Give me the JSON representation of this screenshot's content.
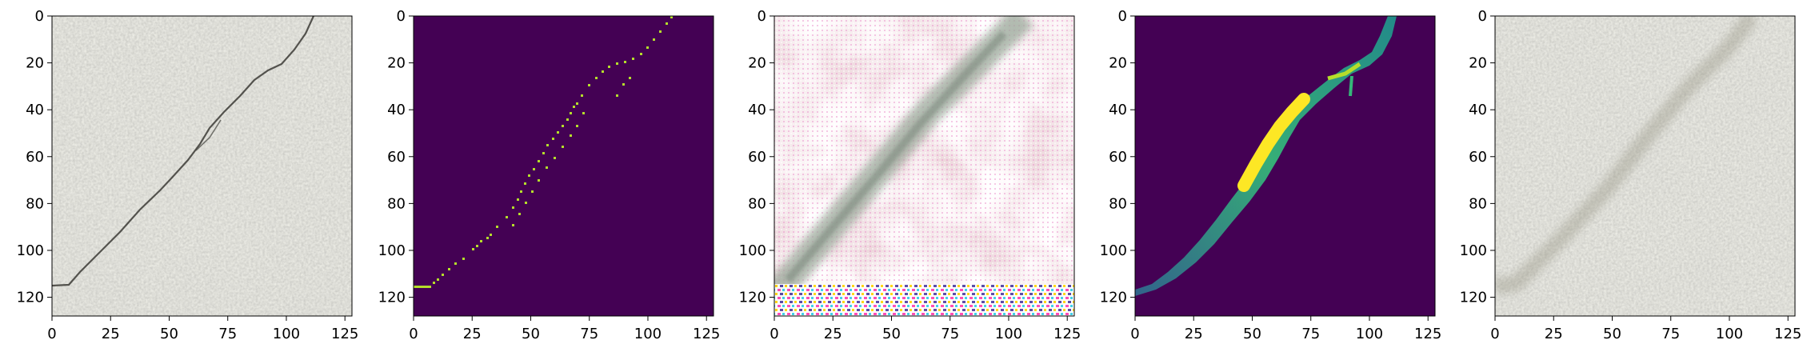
{
  "figure": {
    "panel_count": 5,
    "axes": {
      "x_ticks": [
        "0",
        "25",
        "50",
        "75",
        "100",
        "125"
      ],
      "y_ticks": [
        "0",
        "20",
        "40",
        "60",
        "80",
        "100",
        "120"
      ],
      "x_range": [
        0,
        128
      ],
      "y_range": [
        128,
        0
      ]
    },
    "panels": [
      {
        "id": "panel-1",
        "content": "stone-texture-with-crack-photo"
      },
      {
        "id": "panel-2",
        "content": "binary-crack-mask-viridis"
      },
      {
        "id": "panel-3",
        "content": "generated-texture-pink-artifacts"
      },
      {
        "id": "panel-4",
        "content": "predicted-crack-heatmap-viridis"
      },
      {
        "id": "panel-5",
        "content": "reconstructed-stone-texture"
      }
    ],
    "colors": {
      "viridis_background": "#440154",
      "viridis_mid": "#21918c",
      "viridis_high": "#fde725",
      "stone": "#b5b4ab"
    }
  }
}
